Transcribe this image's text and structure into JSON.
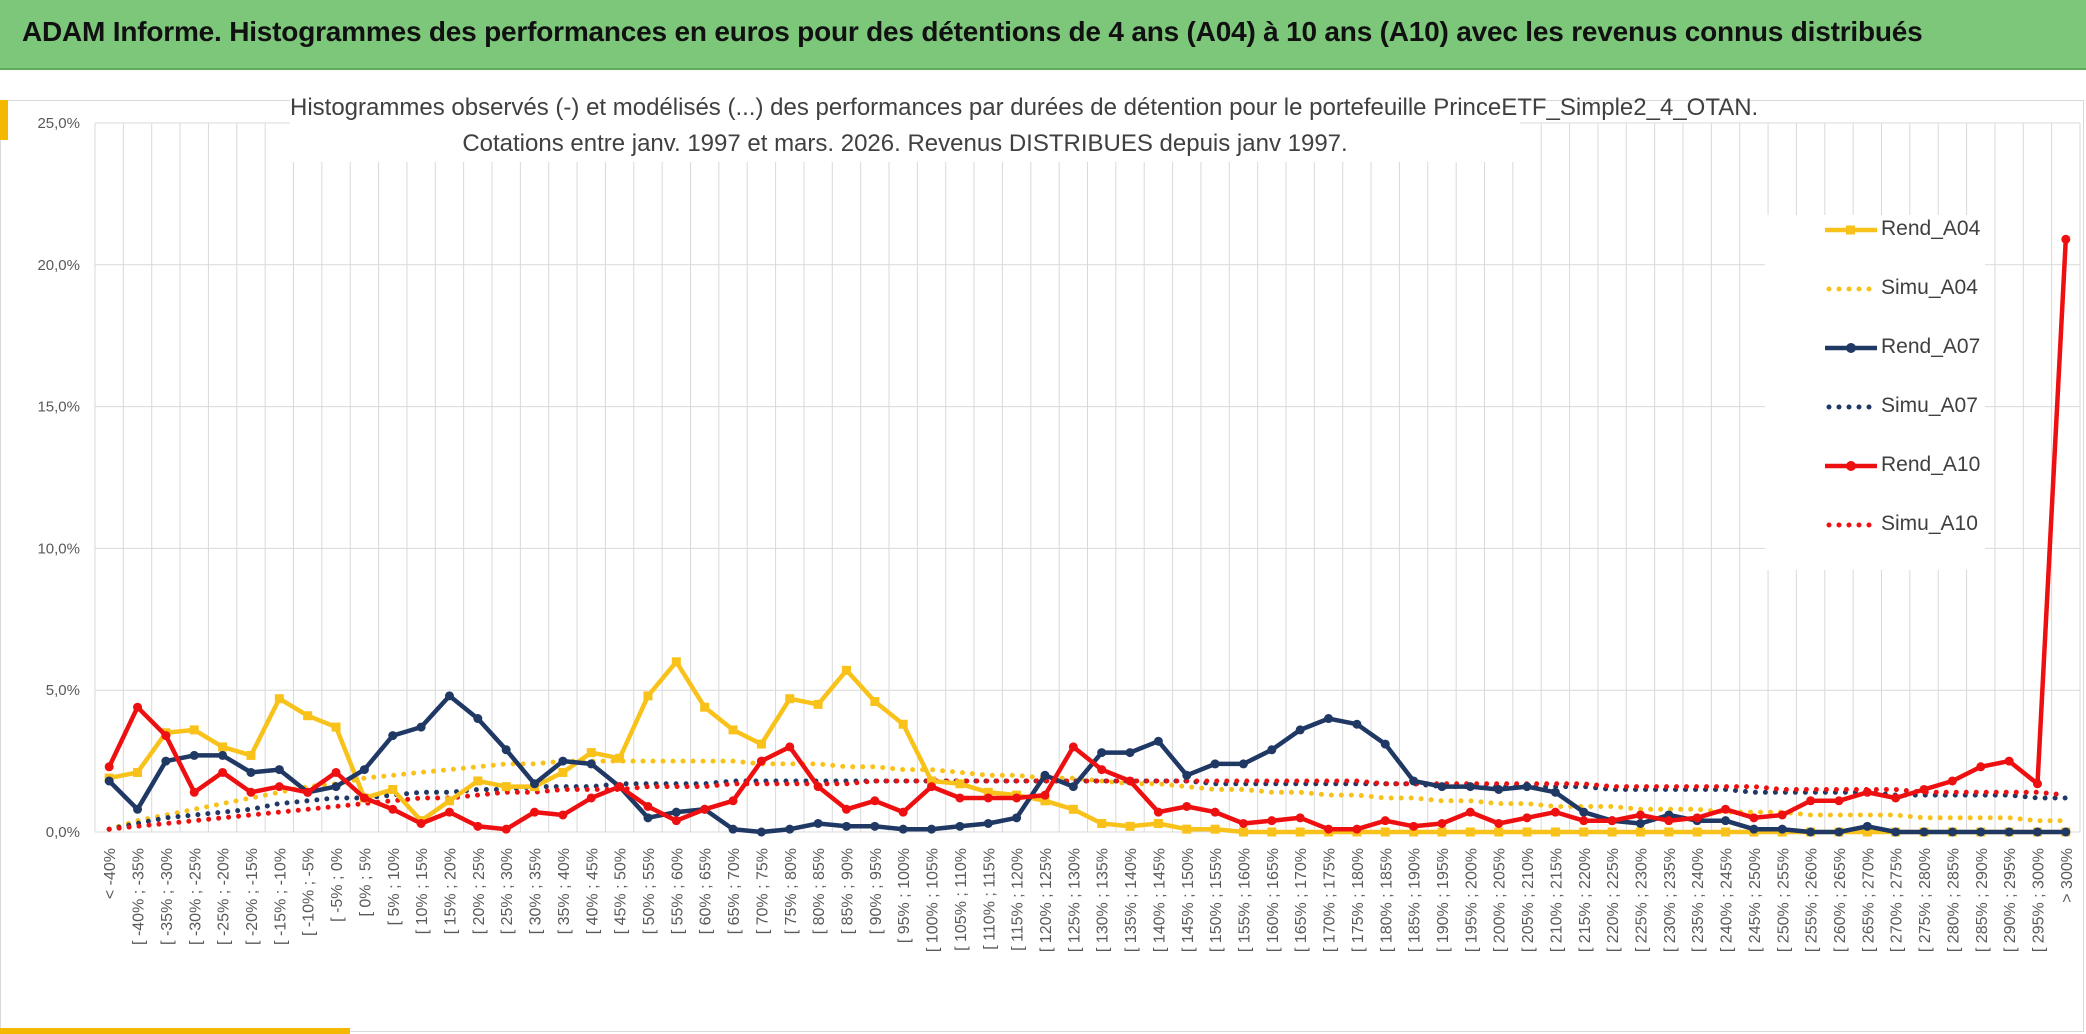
{
  "header": {
    "title": "ADAM Informe. Histogrammes des performances en euros pour des détentions de 4 ans (A04) à 10 ans (A10) avec les revenus connus distribués"
  },
  "colors": {
    "banner": "#7dc77a",
    "accent": "#f5b800",
    "A04": "#f9c21a",
    "A07": "#1f3864",
    "A10": "#ee1010",
    "grid": "#d9d9d9"
  },
  "chart_data": {
    "type": "line",
    "title": "Histogrammes observés (-) et modélisés (...) des performances par durées de détention pour le portefeuille PrinceETF_Simple2_4_OTAN.",
    "subtitle": "Cotations entre janv. 1997 et mars. 2026. Revenus DISTRIBUES depuis janv 1997.",
    "xlabel": "",
    "ylabel": "",
    "ylim": [
      0,
      25
    ],
    "yticks": [
      "0,0%",
      "5,0%",
      "10,0%",
      "15,0%",
      "20,0%",
      "25,0%"
    ],
    "grid": true,
    "legend_position": "right",
    "categories": [
      "< -40%",
      "[ -40% ; -35%",
      "[ -35% ; -30%",
      "[ -30% ; -25%",
      "[ -25% ; -20%",
      "[ -20% ; -15%",
      "[ -15% ; -10%",
      "[ -10% ; -5%",
      "[ -5% ; 0%",
      "[ 0% ; 5%",
      "[ 5% ; 10%",
      "[ 10% ; 15%",
      "[ 15% ; 20%",
      "[ 20% ; 25%",
      "[ 25% ; 30%",
      "[ 30% ; 35%",
      "[ 35% ; 40%",
      "[ 40% ; 45%",
      "[ 45% ; 50%",
      "[ 50% ; 55%",
      "[ 55% ; 60%",
      "[ 60% ; 65%",
      "[ 65% ; 70%",
      "[ 70% ; 75%",
      "[ 75% ; 80%",
      "[ 80% ; 85%",
      "[ 85% ; 90%",
      "[ 90% ; 95%",
      "[ 95% ; 100%",
      "[ 100% ; 105%",
      "[ 105% ; 110%",
      "[ 110% ; 115%",
      "[ 115% ; 120%",
      "[ 120% ; 125%",
      "[ 125% ; 130%",
      "[ 130% ; 135%",
      "[ 135% ; 140%",
      "[ 140% ; 145%",
      "[ 145% ; 150%",
      "[ 150% ; 155%",
      "[ 155% ; 160%",
      "[ 160% ; 165%",
      "[ 165% ; 170%",
      "[ 170% ; 175%",
      "[ 175% ; 180%",
      "[ 180% ; 185%",
      "[ 185% ; 190%",
      "[ 190% ; 195%",
      "[ 195% ; 200%",
      "[ 200% ; 205%",
      "[ 205% ; 210%",
      "[ 210% ; 215%",
      "[ 215% ; 220%",
      "[ 220% ; 225%",
      "[ 225% ; 230%",
      "[ 230% ; 235%",
      "[ 235% ; 240%",
      "[ 240% ; 245%",
      "[ 245% ; 250%",
      "[ 250% ; 255%",
      "[ 255% ; 260%",
      "[ 260% ; 265%",
      "[ 265% ; 270%",
      "[ 270% ; 275%",
      "[ 275% ; 280%",
      "[ 280% ; 285%",
      "[ 285% ; 290%",
      "[ 290% ; 295%",
      "[ 295% ; 300%",
      "> 300%"
    ],
    "series": [
      {
        "name": "Rend_A04",
        "style": "solid",
        "marker": "square",
        "color": "#f9c21a",
        "values": [
          1.9,
          2.1,
          3.5,
          3.6,
          3.0,
          2.7,
          4.7,
          4.1,
          3.7,
          1.2,
          1.5,
          0.4,
          1.1,
          1.8,
          1.6,
          1.6,
          2.1,
          2.8,
          2.6,
          4.8,
          6.0,
          4.4,
          3.6,
          3.1,
          4.7,
          4.5,
          5.7,
          4.6,
          3.8,
          1.8,
          1.7,
          1.4,
          1.3,
          1.1,
          0.8,
          0.3,
          0.2,
          0.3,
          0.1,
          0.1,
          0.0,
          0.0,
          0.0,
          0.0,
          0.0,
          0.0,
          0.0,
          0.0,
          0.0,
          0.0,
          0.0,
          0.0,
          0.0,
          0.0,
          0.0,
          0.0,
          0.0,
          0.0,
          0.0,
          0.0,
          0.0,
          0.0,
          0.0,
          0.0,
          0.0,
          0.0,
          0.0,
          0.0,
          0.0,
          0.0
        ]
      },
      {
        "name": "Simu_A04",
        "style": "dotted",
        "color": "#f9c21a",
        "values": [
          0.1,
          0.4,
          0.6,
          0.8,
          1.0,
          1.2,
          1.4,
          1.6,
          1.7,
          1.9,
          2.0,
          2.1,
          2.2,
          2.3,
          2.4,
          2.4,
          2.5,
          2.5,
          2.5,
          2.5,
          2.5,
          2.5,
          2.5,
          2.4,
          2.4,
          2.4,
          2.3,
          2.3,
          2.2,
          2.2,
          2.1,
          2.0,
          2.0,
          1.9,
          1.9,
          1.8,
          1.7,
          1.7,
          1.6,
          1.5,
          1.5,
          1.4,
          1.4,
          1.3,
          1.3,
          1.2,
          1.2,
          1.1,
          1.1,
          1.0,
          1.0,
          0.9,
          0.9,
          0.9,
          0.8,
          0.8,
          0.8,
          0.7,
          0.7,
          0.7,
          0.6,
          0.6,
          0.6,
          0.6,
          0.5,
          0.5,
          0.5,
          0.5,
          0.4,
          0.4
        ]
      },
      {
        "name": "Rend_A07",
        "style": "solid",
        "marker": "circle",
        "color": "#1f3864",
        "values": [
          1.8,
          0.8,
          2.5,
          2.7,
          2.7,
          2.1,
          2.2,
          1.4,
          1.6,
          2.2,
          3.4,
          3.7,
          4.8,
          4.0,
          2.9,
          1.7,
          2.5,
          2.4,
          1.6,
          0.5,
          0.7,
          0.8,
          0.1,
          0.0,
          0.1,
          0.3,
          0.2,
          0.2,
          0.1,
          0.1,
          0.2,
          0.3,
          0.5,
          2.0,
          1.6,
          2.8,
          2.8,
          3.2,
          2.0,
          2.4,
          2.4,
          2.9,
          3.6,
          4.0,
          3.8,
          3.1,
          1.8,
          1.6,
          1.6,
          1.5,
          1.6,
          1.4,
          0.7,
          0.4,
          0.3,
          0.6,
          0.4,
          0.4,
          0.1,
          0.1,
          0.0,
          0.0,
          0.2,
          0.0,
          0.0,
          0.0,
          0.0,
          0.0,
          0.0,
          0.0
        ]
      },
      {
        "name": "Simu_A07",
        "style": "dotted",
        "color": "#1f3864",
        "values": [
          0.1,
          0.3,
          0.5,
          0.6,
          0.7,
          0.8,
          1.0,
          1.1,
          1.2,
          1.2,
          1.3,
          1.4,
          1.4,
          1.5,
          1.5,
          1.6,
          1.6,
          1.6,
          1.7,
          1.7,
          1.7,
          1.7,
          1.8,
          1.8,
          1.8,
          1.8,
          1.8,
          1.8,
          1.8,
          1.8,
          1.8,
          1.8,
          1.8,
          1.8,
          1.8,
          1.8,
          1.8,
          1.8,
          1.8,
          1.7,
          1.7,
          1.7,
          1.7,
          1.7,
          1.7,
          1.7,
          1.7,
          1.6,
          1.6,
          1.6,
          1.6,
          1.6,
          1.6,
          1.5,
          1.5,
          1.5,
          1.5,
          1.5,
          1.4,
          1.4,
          1.4,
          1.4,
          1.4,
          1.3,
          1.3,
          1.3,
          1.3,
          1.3,
          1.2,
          1.2
        ]
      },
      {
        "name": "Rend_A10",
        "style": "solid",
        "marker": "circle",
        "color": "#ee1010",
        "values": [
          2.3,
          4.4,
          3.4,
          1.4,
          2.1,
          1.4,
          1.6,
          1.4,
          2.1,
          1.2,
          0.8,
          0.3,
          0.7,
          0.2,
          0.1,
          0.7,
          0.6,
          1.2,
          1.6,
          0.9,
          0.4,
          0.8,
          1.1,
          2.5,
          3.0,
          1.6,
          0.8,
          1.1,
          0.7,
          1.6,
          1.2,
          1.2,
          1.2,
          1.3,
          3.0,
          2.2,
          1.8,
          0.7,
          0.9,
          0.7,
          0.3,
          0.4,
          0.5,
          0.1,
          0.1,
          0.4,
          0.2,
          0.3,
          0.7,
          0.3,
          0.5,
          0.7,
          0.4,
          0.4,
          0.6,
          0.4,
          0.5,
          0.8,
          0.5,
          0.6,
          1.1,
          1.1,
          1.4,
          1.2,
          1.5,
          1.8,
          2.3,
          2.5,
          1.7,
          20.9
        ]
      },
      {
        "name": "Simu_A10",
        "style": "dotted",
        "color": "#ee1010",
        "values": [
          0.1,
          0.2,
          0.3,
          0.4,
          0.5,
          0.6,
          0.7,
          0.8,
          0.9,
          1.0,
          1.1,
          1.2,
          1.2,
          1.3,
          1.4,
          1.4,
          1.5,
          1.5,
          1.5,
          1.6,
          1.6,
          1.6,
          1.7,
          1.7,
          1.7,
          1.7,
          1.7,
          1.8,
          1.8,
          1.8,
          1.8,
          1.8,
          1.8,
          1.8,
          1.8,
          1.8,
          1.8,
          1.8,
          1.8,
          1.8,
          1.8,
          1.8,
          1.8,
          1.8,
          1.8,
          1.7,
          1.7,
          1.7,
          1.7,
          1.7,
          1.7,
          1.7,
          1.7,
          1.6,
          1.6,
          1.6,
          1.6,
          1.6,
          1.6,
          1.5,
          1.5,
          1.5,
          1.5,
          1.5,
          1.4,
          1.4,
          1.4,
          1.4,
          1.4,
          1.3
        ]
      }
    ]
  }
}
